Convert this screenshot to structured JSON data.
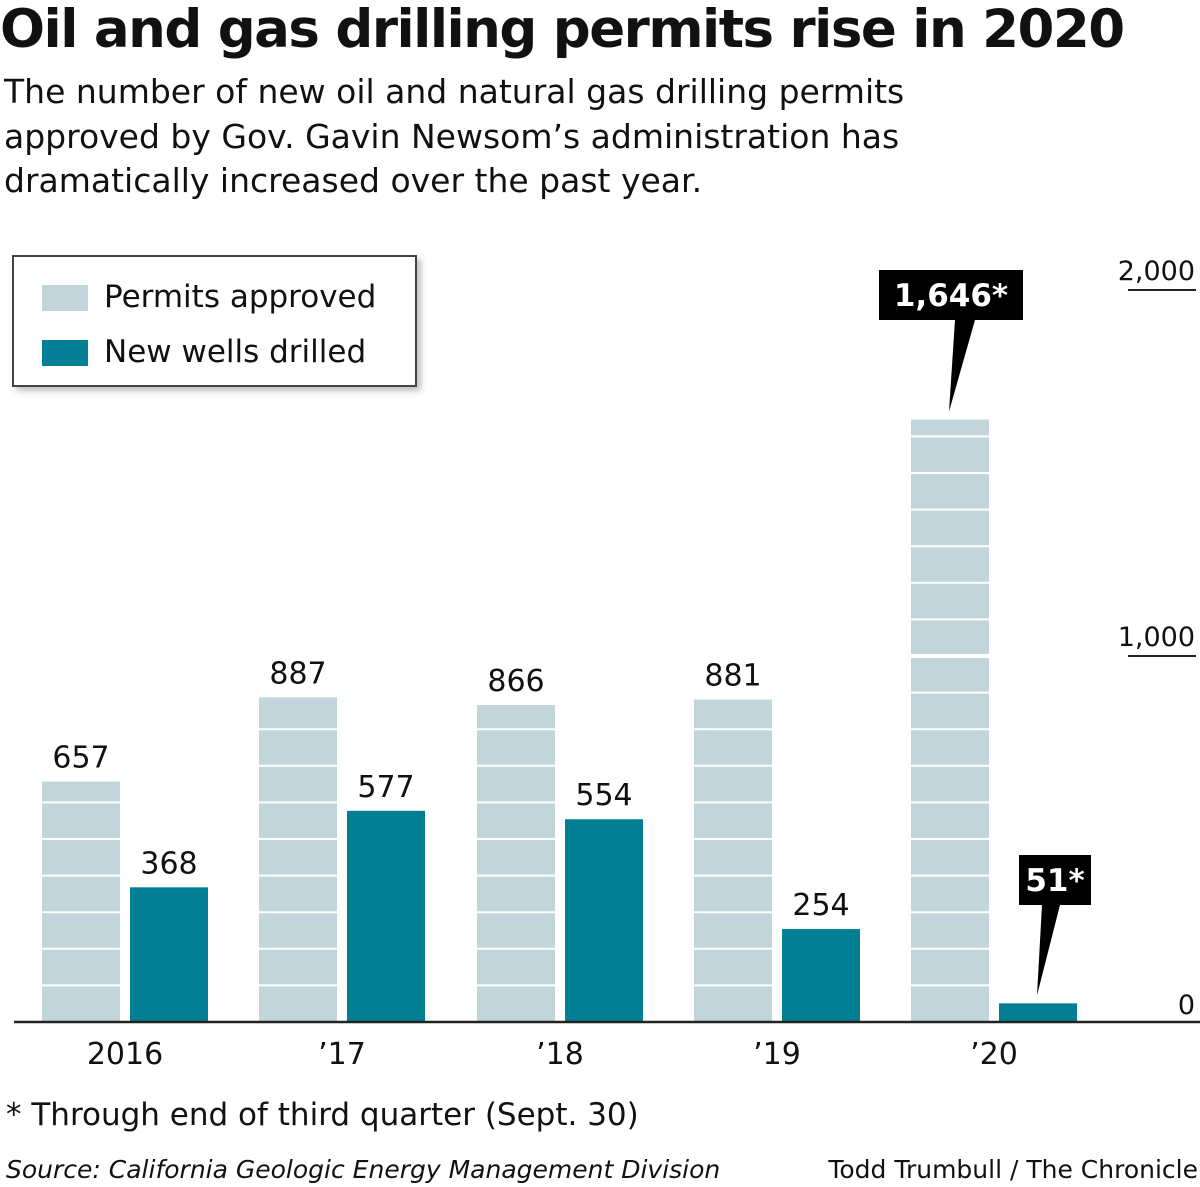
{
  "header": {
    "title": "Oil and gas drilling permits rise in 2020",
    "subtitle": "The number of new oil and natural gas drilling permits approved by Gov. Gavin Newsom’s administration has dramatically increased over the past year."
  },
  "legend": {
    "items": [
      {
        "label": "Permits approved",
        "color": "#c2d5da"
      },
      {
        "label": "New wells drilled",
        "color": "#037f94"
      }
    ]
  },
  "chart_data": {
    "type": "bar",
    "categories": [
      "2016",
      "’17",
      "’18",
      "’19",
      "’20"
    ],
    "series": [
      {
        "name": "Permits approved",
        "color": "#c2d5da",
        "values": [
          657,
          887,
          866,
          881,
          1646
        ],
        "labels": [
          "657",
          "887",
          "866",
          "881",
          "1,646*"
        ]
      },
      {
        "name": "New wells drilled",
        "color": "#037f94",
        "values": [
          368,
          577,
          554,
          254,
          51
        ],
        "labels": [
          "368",
          "577",
          "554",
          "254",
          "51*"
        ]
      }
    ],
    "callouts": [
      "1,646*",
      "51*"
    ],
    "ylim": [
      0,
      2000
    ],
    "yticks": [
      0,
      1000,
      2000
    ],
    "ytick_labels": [
      "0",
      "1,000",
      "2,000"
    ],
    "grid": false,
    "legend_position": "top-left",
    "xlabel": "",
    "ylabel": ""
  },
  "footer": {
    "footnote": "* Through end of third quarter (Sept. 30)",
    "source": "Source: California Geologic Energy Management Division",
    "credit": "Todd Trumbull / The Chronicle"
  }
}
